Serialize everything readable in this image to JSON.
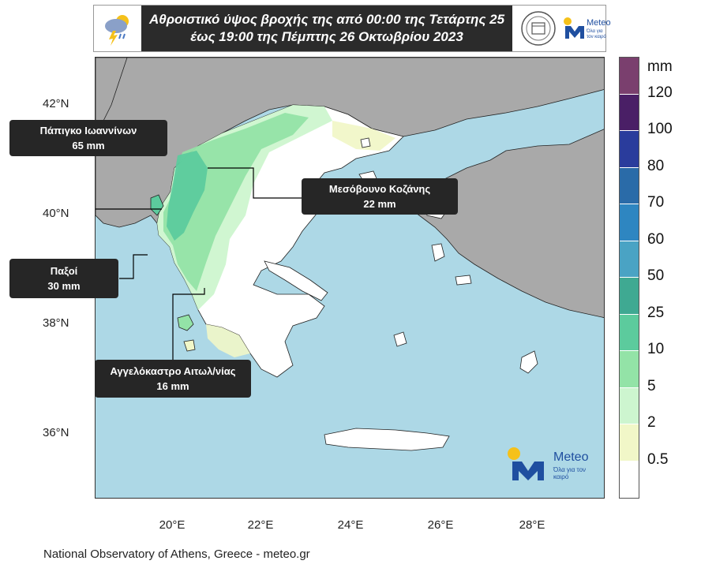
{
  "header": {
    "title_line1": "Αθροιστικό ύψος βροχής της από 00:00 της Τετάρτης 25",
    "title_line2": "έως 19:00 της Πέμπτης 26 Οκτωβρίου 2023",
    "logo_text": "Meteo",
    "logo_tagline": "Όλα για τον καιρό"
  },
  "axes": {
    "lat_ticks": [
      "42°N",
      "40°N",
      "38°N",
      "36°N"
    ],
    "lon_ticks": [
      "20°E",
      "22°E",
      "24°E",
      "26°E",
      "28°E"
    ]
  },
  "callouts": [
    {
      "line1": "Πάπιγκο Ιωαννίνων",
      "line2": "65 mm"
    },
    {
      "line1": "Μεσόβουνο Κοζάνης",
      "line2": "22 mm"
    },
    {
      "line1": "Παξοί",
      "line2": "30 mm"
    },
    {
      "line1": "Αγγελόκαστρο Αιτωλ/νίας",
      "line2": "16 mm"
    }
  ],
  "colorbar": {
    "unit": "mm",
    "labels": [
      "120",
      "100",
      "80",
      "70",
      "60",
      "50",
      "25",
      "10",
      "5",
      "2",
      "0.5"
    ],
    "colors": [
      "#7a3f6e",
      "#4a1f66",
      "#2a3c9c",
      "#2a6ba8",
      "#2e86c1",
      "#4aa3c4",
      "#3fa992",
      "#5ccb9d",
      "#93e3a7",
      "#cdf5cf",
      "#f1f7c8",
      "#ffffff"
    ]
  },
  "map_colors": {
    "sea": "#add8e6",
    "land_other": "#a9a9a9",
    "land_dry": "#ffffff"
  },
  "watermark": {
    "text": "Meteo",
    "tagline": "Όλα για τον καιρό"
  },
  "footer": "National Observatory of Athens, Greece - meteo.gr"
}
